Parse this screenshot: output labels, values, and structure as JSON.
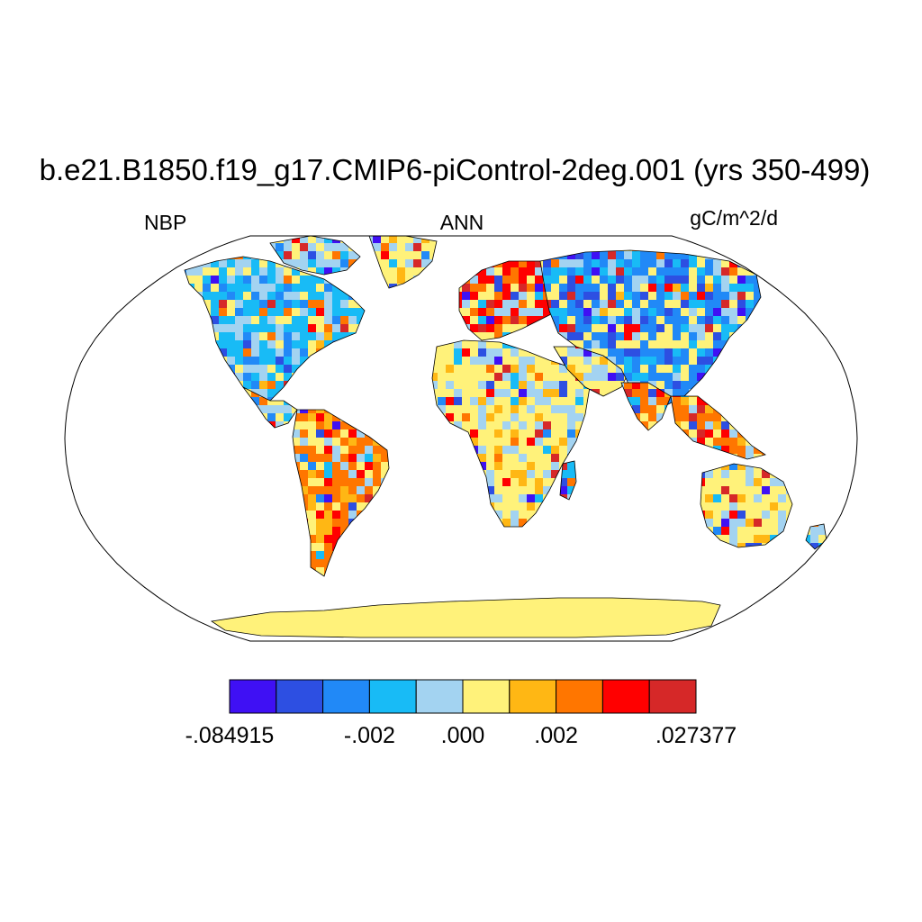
{
  "title": "b.e21.B1850.f19_g17.CMIP6-piControl-2deg.001 (yrs 350-499)",
  "left_label": "NBP",
  "center_label": "ANN",
  "right_label": "gC/m^2/d",
  "projection": "robinson",
  "colorbar": {
    "colors": [
      "#3f10f4",
      "#2d4fe2",
      "#2189f7",
      "#18bbf6",
      "#a3d3f1",
      "#fff27a",
      "#ffb714",
      "#ff7600",
      "#ff0000",
      "#d62828"
    ],
    "tick_labels": [
      {
        "label": "-.084915",
        "boundary": 0
      },
      {
        "label": "-.002",
        "boundary": 3
      },
      {
        "label": ".000",
        "boundary": 5
      },
      {
        "label": ".002",
        "boundary": 7
      },
      {
        "label": ".027377",
        "boundary": 10
      }
    ]
  }
}
